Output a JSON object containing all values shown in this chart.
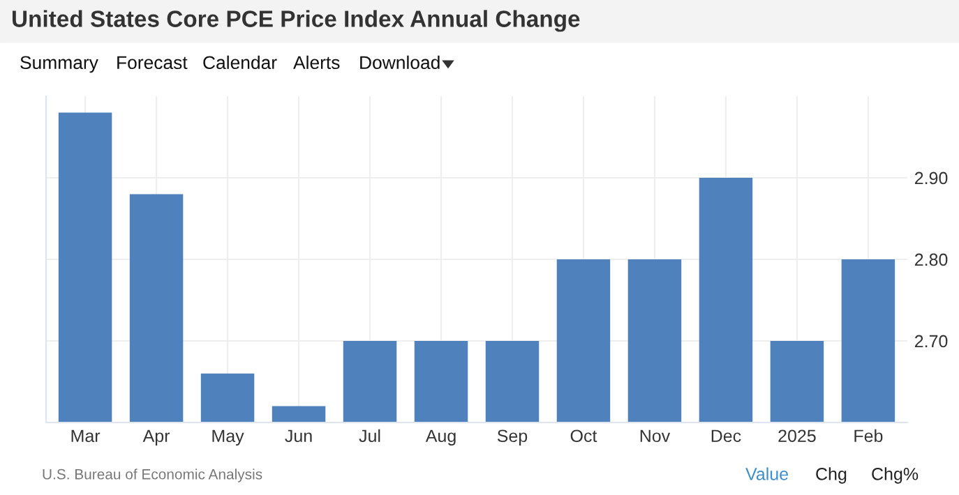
{
  "chart_data": {
    "type": "bar",
    "title": "United States Core PCE Price Index Annual Change",
    "categories": [
      "Mar",
      "Apr",
      "May",
      "Jun",
      "Jul",
      "Aug",
      "Sep",
      "Oct",
      "Nov",
      "Dec",
      "2025",
      "Feb"
    ],
    "values": [
      2.98,
      2.88,
      2.66,
      2.62,
      2.7,
      2.7,
      2.7,
      2.8,
      2.8,
      2.9,
      2.7,
      2.8
    ],
    "color": "#4f81bd",
    "ylim": [
      2.6,
      3.0
    ],
    "yticks": [
      {
        "value": 2.7,
        "label": "2.70"
      },
      {
        "value": 2.8,
        "label": "2.80"
      },
      {
        "value": 2.9,
        "label": "2.90"
      }
    ],
    "grid": true,
    "annotations": [
      "Summary",
      "Forecast",
      "Calendar",
      "Alerts",
      "Download",
      "U.S. Bureau of Economic Analysis",
      "Value",
      "Chg",
      "Chg%"
    ]
  }
}
